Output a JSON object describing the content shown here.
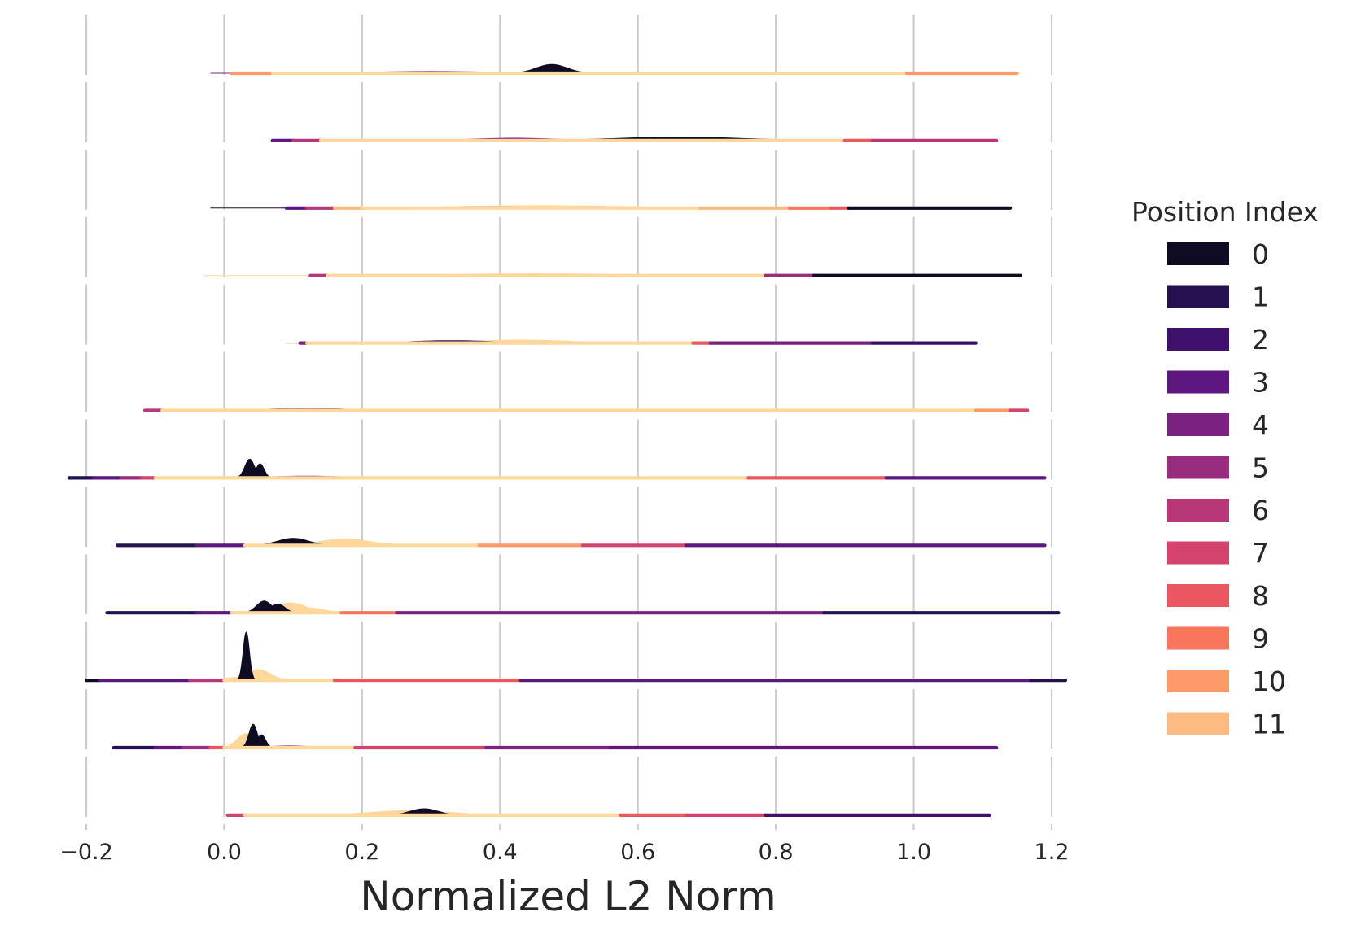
{
  "chart_data": {
    "type": "ridgeline",
    "title": "",
    "xlabel": "Normalized L2 Norm",
    "ylabel": "",
    "xlim": [
      -0.225,
      1.225
    ],
    "xticks": [
      -0.2,
      0.0,
      0.2,
      0.4,
      0.6,
      0.8,
      1.0,
      1.2
    ],
    "xtick_labels": [
      "−0.2",
      "0.0",
      "0.2",
      "0.4",
      "0.6",
      "0.8",
      "1.0",
      "1.2"
    ],
    "grid": "vertical",
    "legend": {
      "title": "Position Index",
      "placement": "right",
      "entries": [
        {
          "label": "0",
          "color": "#0f0b22"
        },
        {
          "label": "1",
          "color": "#231150"
        },
        {
          "label": "2",
          "color": "#40106e"
        },
        {
          "label": "3",
          "color": "#5d177e"
        },
        {
          "label": "4",
          "color": "#7a2182"
        },
        {
          "label": "5",
          "color": "#982d80"
        },
        {
          "label": "6",
          "color": "#b73779"
        },
        {
          "label": "7",
          "color": "#d3436e"
        },
        {
          "label": "8",
          "color": "#eb5760"
        },
        {
          "label": "9",
          "color": "#f8765c"
        },
        {
          "label": "10",
          "color": "#fd9a6a"
        },
        {
          "label": "11",
          "color": "#febb81"
        }
      ]
    },
    "ridge_palette": [
      "#0f0b22",
      "#231150",
      "#40106e",
      "#5d177e",
      "#7a2182",
      "#982d80",
      "#b73779",
      "#d3436e",
      "#eb5760",
      "#f8765c",
      "#fd9a6a",
      "#febb81",
      "#fed89b"
    ],
    "ridges": [
      {
        "segments": [
          [
            0.01,
            0.07,
            10
          ],
          [
            0.07,
            0.99,
            12
          ],
          [
            0.99,
            1.15,
            10
          ]
        ],
        "peaks": [
          {
            "x": 0.475,
            "h": 0.15,
            "w": 0.022,
            "c": 0
          },
          {
            "x": 0.3,
            "h": 0.03,
            "w": 0.08,
            "c": 4
          }
        ]
      },
      {
        "segments": [
          [
            0.07,
            0.1,
            3
          ],
          [
            0.1,
            0.14,
            6
          ],
          [
            0.14,
            0.9,
            12
          ],
          [
            0.9,
            0.94,
            8
          ],
          [
            0.94,
            1.12,
            6
          ]
        ],
        "peaks": [
          {
            "x": 0.66,
            "h": 0.06,
            "w": 0.09,
            "c": 0
          },
          {
            "x": 0.42,
            "h": 0.04,
            "w": 0.06,
            "c": 4
          }
        ]
      },
      {
        "segments": [
          [
            0.09,
            0.12,
            3
          ],
          [
            0.12,
            0.16,
            6
          ],
          [
            0.16,
            0.2,
            11
          ],
          [
            0.2,
            0.69,
            12
          ],
          [
            0.69,
            0.82,
            11
          ],
          [
            0.82,
            0.88,
            9
          ],
          [
            0.88,
            0.905,
            8
          ],
          [
            0.905,
            1.14,
            0
          ]
        ],
        "peaks": [
          {
            "x": 0.46,
            "h": 0.04,
            "w": 0.12,
            "c": 12
          },
          {
            "x": 0.38,
            "h": 0.02,
            "w": 0.1,
            "c": 1
          }
        ]
      },
      {
        "segments": [
          [
            0.125,
            0.15,
            6
          ],
          [
            0.15,
            0.785,
            12
          ],
          [
            0.785,
            0.855,
            5
          ],
          [
            0.855,
            1.155,
            0
          ]
        ],
        "peaks": [
          {
            "x": 0.45,
            "h": 0.03,
            "w": 0.12,
            "c": 12
          }
        ]
      },
      {
        "segments": [
          [
            0.11,
            0.12,
            4
          ],
          [
            0.12,
            0.68,
            12
          ],
          [
            0.68,
            0.705,
            8
          ],
          [
            0.705,
            0.94,
            4
          ],
          [
            0.94,
            1.09,
            2
          ]
        ],
        "peaks": [
          {
            "x": 0.33,
            "h": 0.04,
            "w": 0.06,
            "c": 1
          },
          {
            "x": 0.43,
            "h": 0.05,
            "w": 0.07,
            "c": 12
          }
        ]
      },
      {
        "segments": [
          [
            -0.115,
            -0.09,
            6
          ],
          [
            -0.09,
            1.09,
            12
          ],
          [
            1.09,
            1.14,
            10
          ],
          [
            1.14,
            1.165,
            7
          ]
        ],
        "peaks": [
          {
            "x": 0.12,
            "h": 0.04,
            "w": 0.05,
            "c": 4
          }
        ]
      },
      {
        "segments": [
          [
            -0.225,
            -0.19,
            1
          ],
          [
            -0.19,
            -0.15,
            3
          ],
          [
            -0.15,
            -0.12,
            5
          ],
          [
            -0.12,
            -0.1,
            7
          ],
          [
            -0.1,
            0.76,
            12
          ],
          [
            0.76,
            0.96,
            8
          ],
          [
            0.96,
            1.19,
            3
          ]
        ],
        "peaks": [
          {
            "x": 0.037,
            "h": 0.32,
            "w": 0.007,
            "c": 0
          },
          {
            "x": 0.052,
            "h": 0.24,
            "w": 0.006,
            "c": 0
          },
          {
            "x": 0.12,
            "h": 0.03,
            "w": 0.05,
            "c": 4
          }
        ]
      },
      {
        "segments": [
          [
            -0.155,
            -0.04,
            1
          ],
          [
            -0.04,
            0.03,
            3
          ],
          [
            0.03,
            0.37,
            12
          ],
          [
            0.37,
            0.52,
            10
          ],
          [
            0.52,
            0.67,
            7
          ],
          [
            0.67,
            1.19,
            3
          ]
        ],
        "peaks": [
          {
            "x": 0.1,
            "h": 0.12,
            "w": 0.022,
            "c": 0
          },
          {
            "x": 0.175,
            "h": 0.11,
            "w": 0.035,
            "c": 12
          }
        ]
      },
      {
        "segments": [
          [
            -0.17,
            -0.04,
            1
          ],
          [
            -0.04,
            0.01,
            3
          ],
          [
            0.01,
            0.17,
            12
          ],
          [
            0.17,
            0.25,
            9
          ],
          [
            0.25,
            0.87,
            4
          ],
          [
            0.87,
            1.21,
            1
          ]
        ],
        "peaks": [
          {
            "x": 0.058,
            "h": 0.2,
            "w": 0.011,
            "c": 0
          },
          {
            "x": 0.078,
            "h": 0.15,
            "w": 0.01,
            "c": 0
          },
          {
            "x": 0.097,
            "h": 0.17,
            "w": 0.022,
            "c": 12
          },
          {
            "x": 0.125,
            "h": 0.08,
            "w": 0.02,
            "c": 12
          }
        ]
      },
      {
        "segments": [
          [
            -0.2,
            -0.18,
            0
          ],
          [
            -0.18,
            -0.05,
            3
          ],
          [
            -0.05,
            0.0,
            6
          ],
          [
            0.0,
            0.16,
            12
          ],
          [
            0.16,
            0.43,
            8
          ],
          [
            0.43,
            1.17,
            3
          ],
          [
            1.17,
            1.22,
            1
          ]
        ],
        "peaks": [
          {
            "x": 0.032,
            "h": 0.82,
            "w": 0.0045,
            "c": 0
          },
          {
            "x": 0.05,
            "h": 0.18,
            "w": 0.017,
            "c": 12
          },
          {
            "x": 0.02,
            "h": 0.05,
            "w": 0.02,
            "c": 12
          }
        ]
      },
      {
        "segments": [
          [
            -0.16,
            -0.1,
            1
          ],
          [
            -0.1,
            -0.06,
            3
          ],
          [
            -0.06,
            -0.02,
            5
          ],
          [
            -0.02,
            0.0,
            8
          ],
          [
            0.0,
            0.19,
            12
          ],
          [
            0.19,
            0.38,
            7
          ],
          [
            0.38,
            0.56,
            4
          ],
          [
            0.56,
            1.12,
            3
          ]
        ],
        "peaks": [
          {
            "x": 0.042,
            "h": 0.4,
            "w": 0.006,
            "c": 0
          },
          {
            "x": 0.054,
            "h": 0.22,
            "w": 0.006,
            "c": 0
          },
          {
            "x": 0.032,
            "h": 0.24,
            "w": 0.013,
            "c": 12
          },
          {
            "x": 0.095,
            "h": 0.03,
            "w": 0.03,
            "c": 4
          }
        ]
      },
      {
        "segments": [
          [
            0.005,
            0.03,
            7
          ],
          [
            0.03,
            0.575,
            12
          ],
          [
            0.575,
            0.67,
            8
          ],
          [
            0.67,
            0.785,
            7
          ],
          [
            0.785,
            1.11,
            2
          ]
        ],
        "peaks": [
          {
            "x": 0.29,
            "h": 0.11,
            "w": 0.02,
            "c": 0
          },
          {
            "x": 0.27,
            "h": 0.08,
            "w": 0.055,
            "c": 12
          }
        ]
      }
    ]
  }
}
